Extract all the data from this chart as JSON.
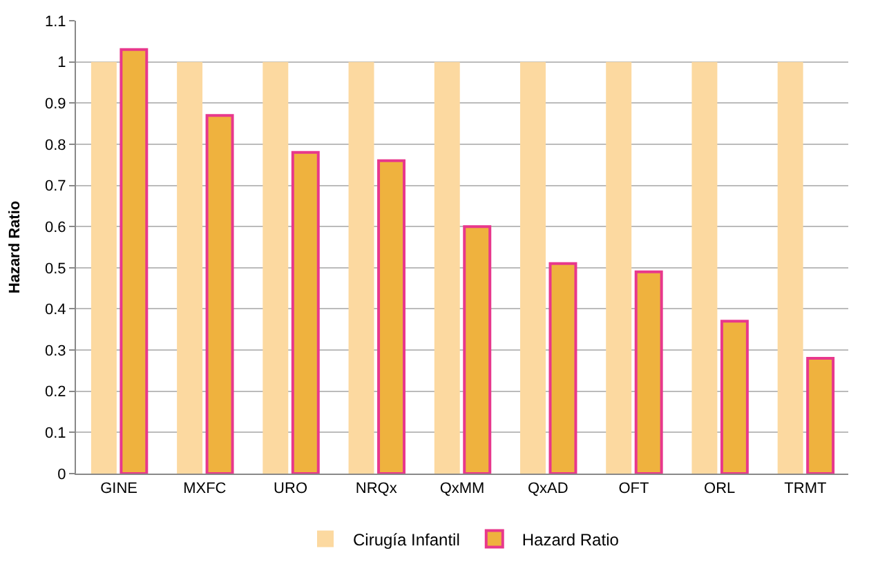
{
  "chart_data": {
    "type": "bar",
    "ylabel": "Hazard Ratio",
    "categories": [
      "GINE",
      "MXFC",
      "URO",
      "NRQx",
      "QxMM",
      "QxAD",
      "OFT",
      "ORL",
      "TRMT"
    ],
    "series": [
      {
        "name": "Cirugía Infantil",
        "color": "#fcd9a0",
        "values": [
          1,
          1,
          1,
          1,
          1,
          1,
          1,
          1,
          1
        ]
      },
      {
        "name": "Hazard Ratio",
        "color": "#efb23e",
        "values": [
          1.03,
          0.87,
          0.78,
          0.76,
          0.6,
          0.51,
          0.49,
          0.37,
          0.28
        ]
      }
    ],
    "ylim": [
      0,
      1.1
    ],
    "yticks": [
      0,
      0.1,
      0.2,
      0.3,
      0.4,
      0.5,
      0.6,
      0.7,
      0.8,
      0.9,
      1,
      1.1
    ],
    "grid": "y",
    "legend": "bottom"
  }
}
